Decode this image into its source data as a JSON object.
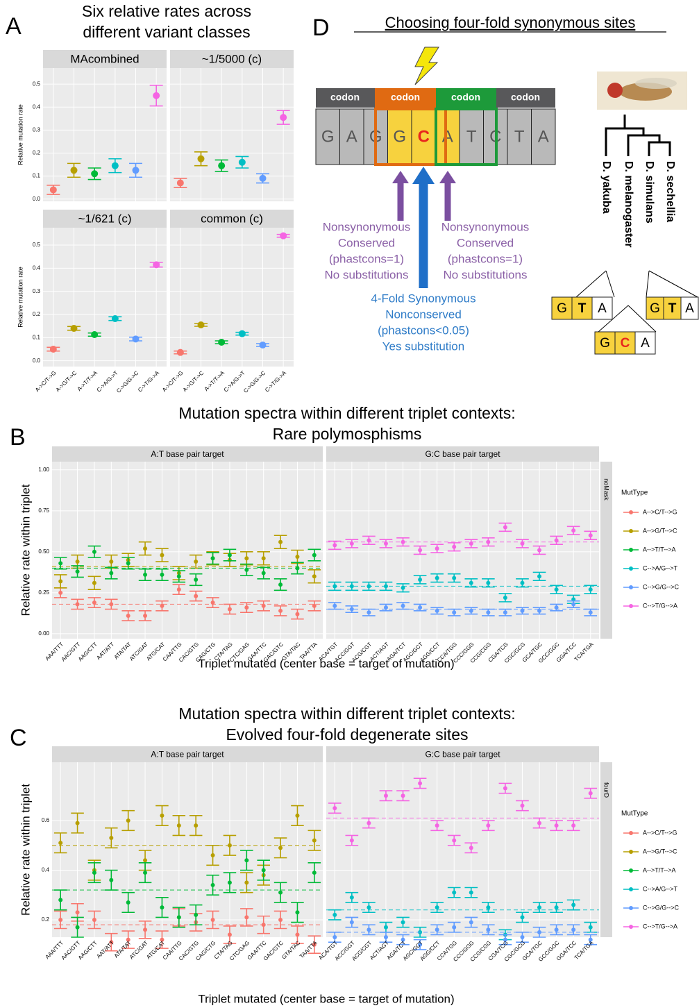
{
  "chart_data": [
    {
      "type": "errorbar",
      "panel": "A",
      "title": [
        "Six relative rates across",
        "different variant classes"
      ],
      "ylabel": "Relative mutation rate",
      "categories": [
        "A->C/T->G",
        "A->G/T->C",
        "A->T/T->A",
        "C->A/G->T",
        "C->G/G->C",
        "C->T/G->A"
      ],
      "colors": [
        "#F8766D",
        "#B79F00",
        "#00BA38",
        "#00BFC4",
        "#619CFF",
        "#F564E3"
      ],
      "rows": [
        {
          "ylim": [
            -0.01,
            0.57
          ],
          "yticks": [
            {
              "value": 0,
              "label": "0.0"
            },
            0.1,
            0.2,
            0.3,
            0.4,
            0.5
          ],
          "facets": [
            {
              "title": "MAcombined",
              "values": [
                0.04,
                0.125,
                0.11,
                0.145,
                0.125,
                0.45
              ],
              "errors": [
                0.02,
                0.03,
                0.025,
                0.03,
                0.03,
                0.045
              ]
            },
            {
              "title": "~1/5000 (c)",
              "values": [
                0.07,
                0.175,
                0.145,
                0.16,
                0.09,
                0.355
              ],
              "errors": [
                0.02,
                0.03,
                0.025,
                0.025,
                0.02,
                0.03
              ]
            }
          ]
        },
        {
          "ylim": [
            -0.025,
            0.575
          ],
          "yticks": [
            {
              "value": 0,
              "label": "0.0"
            },
            0.1,
            0.2,
            0.3,
            0.4,
            0.5
          ],
          "facets": [
            {
              "title": "~1/621 (c)",
              "values": [
                0.05,
                0.14,
                0.113,
                0.182,
                0.094,
                0.415
              ],
              "errors": [
                0.008,
                0.008,
                0.007,
                0.008,
                0.008,
                0.01
              ]
            },
            {
              "title": "common (c)",
              "values": [
                0.036,
                0.155,
                0.08,
                0.117,
                0.068,
                0.54
              ],
              "errors": [
                0.006,
                0.006,
                0.006,
                0.006,
                0.006,
                0.006
              ]
            }
          ]
        }
      ]
    },
    {
      "type": "errorbar_facets",
      "panel": "B",
      "title": [
        "Mutation spectra within different triplet contexts:",
        "Rare polymosphisms"
      ],
      "xlabel": "Triplet mutated (center base = target of mutation)",
      "ylabel": "Relative rate within triplet",
      "strip": "noMask",
      "legend_title": "MutType",
      "ylim": [
        -0.03,
        1.05
      ],
      "yticks": [
        {
          "value": 0,
          "label": "0.00"
        },
        0.25,
        {
          "value": 0.5,
          "label": "0.50"
        },
        0.75,
        {
          "value": 1,
          "label": "1.00"
        }
      ],
      "facets": [
        {
          "title": "A:T base pair target",
          "categories": [
            "AAA/TTT",
            "AAC/GTT",
            "AAG/CTT",
            "AAT/ATT",
            "ATA/TAT",
            "ATC/GAT",
            "ATG/CAT",
            "CAA/TTG",
            "CAC/GTG",
            "CAG/CTG",
            "CTA/TAG",
            "CTC/GAG",
            "GAA/TTC",
            "GAC/GTC",
            "GTA/TAC",
            "TAA/TTA"
          ],
          "series": [
            {
              "name": "A-->C/T-->G",
              "color": "#F8766D",
              "mean": 0.18,
              "values": [
                0.25,
                0.18,
                0.19,
                0.18,
                0.11,
                0.11,
                0.17,
                0.27,
                0.23,
                0.19,
                0.15,
                0.16,
                0.17,
                0.14,
                0.12,
                0.17
              ],
              "errors": [
                0.03,
                0.03,
                0.03,
                0.03,
                0.03,
                0.03,
                0.03,
                0.03,
                0.03,
                0.03,
                0.03,
                0.03,
                0.03,
                0.03,
                0.03,
                0.03
              ]
            },
            {
              "name": "A-->G/T-->C",
              "color": "#B79F00",
              "mean": 0.41,
              "values": [
                0.32,
                0.44,
                0.31,
                0.44,
                0.45,
                0.52,
                0.48,
                0.37,
                0.44,
                0.46,
                0.45,
                0.46,
                0.46,
                0.56,
                0.47,
                0.35
              ],
              "errors": [
                0.04,
                0.04,
                0.04,
                0.04,
                0.04,
                0.04,
                0.04,
                0.04,
                0.04,
                0.04,
                0.04,
                0.04,
                0.04,
                0.04,
                0.04,
                0.04
              ]
            },
            {
              "name": "A-->T/T-->A",
              "color": "#00BA38",
              "mean": 0.4,
              "values": [
                0.43,
                0.38,
                0.5,
                0.37,
                0.43,
                0.36,
                0.36,
                0.35,
                0.33,
                0.46,
                0.48,
                0.39,
                0.37,
                0.3,
                0.4,
                0.48
              ],
              "errors": [
                0.035,
                0.035,
                0.035,
                0.035,
                0.035,
                0.035,
                0.035,
                0.035,
                0.035,
                0.035,
                0.035,
                0.035,
                0.035,
                0.035,
                0.035,
                0.035
              ]
            }
          ]
        },
        {
          "title": "G:C base pair target",
          "categories": [
            "ACA/TGT",
            "ACC/GGT",
            "ACG/CGT",
            "ACT/AGT",
            "AGA/TCT",
            "AGC/GCT",
            "AGG/CCT",
            "CCA/TGG",
            "CCC/GGG",
            "CCG/CGG",
            "CGA/TCG",
            "CGC/GCG",
            "GCA/TGC",
            "GCC/GGC",
            "GGA/TCC",
            "TCA/TGA"
          ],
          "series": [
            {
              "name": "C-->A/G-->T",
              "color": "#00BFC4",
              "mean": 0.29,
              "values": [
                0.29,
                0.29,
                0.29,
                0.29,
                0.28,
                0.33,
                0.34,
                0.34,
                0.31,
                0.31,
                0.22,
                0.31,
                0.35,
                0.27,
                0.21,
                0.27
              ],
              "errors": [
                0.025,
                0.025,
                0.025,
                0.025,
                0.025,
                0.025,
                0.025,
                0.025,
                0.025,
                0.025,
                0.025,
                0.025,
                0.025,
                0.025,
                0.025,
                0.025
              ]
            },
            {
              "name": "C-->G/G-->C",
              "color": "#619CFF",
              "mean": 0.15,
              "values": [
                0.17,
                0.15,
                0.13,
                0.16,
                0.17,
                0.16,
                0.14,
                0.13,
                0.14,
                0.13,
                0.13,
                0.14,
                0.14,
                0.16,
                0.18,
                0.13
              ],
              "errors": [
                0.02,
                0.02,
                0.02,
                0.02,
                0.02,
                0.02,
                0.02,
                0.02,
                0.02,
                0.02,
                0.02,
                0.02,
                0.02,
                0.02,
                0.02,
                0.02
              ]
            },
            {
              "name": "C-->T/G-->A",
              "color": "#F564E3",
              "mean": 0.56,
              "values": [
                0.54,
                0.55,
                0.57,
                0.55,
                0.56,
                0.51,
                0.52,
                0.53,
                0.55,
                0.56,
                0.65,
                0.55,
                0.51,
                0.57,
                0.63,
                0.6
              ],
              "errors": [
                0.025,
                0.025,
                0.025,
                0.025,
                0.025,
                0.025,
                0.025,
                0.025,
                0.025,
                0.025,
                0.025,
                0.025,
                0.025,
                0.025,
                0.025,
                0.025
              ]
            }
          ]
        }
      ]
    },
    {
      "type": "errorbar_facets",
      "panel": "C",
      "title": [
        "Mutation spectra within different triplet contexts:",
        "Evolved four-fold degenerate sites"
      ],
      "xlabel": "Triplet mutated (center base = target of mutation)",
      "ylabel": "Relative rate within triplet",
      "strip": "fourD",
      "legend_title": "MutType",
      "ylim": [
        0.13,
        0.835
      ],
      "yticks": [
        0.2,
        0.4,
        0.6
      ],
      "facets": [
        {
          "title": "A:T base pair target",
          "categories": [
            "AAA/TTT",
            "AAC/GTT",
            "AAG/CTT",
            "AAT/ATT",
            "ATA/TAT",
            "ATC/GAT",
            "ATG/CAT",
            "CAA/TTG",
            "CAC/GTG",
            "CAG/CTG",
            "CTA/TAG",
            "CTC/GAG",
            "GAA/TTC",
            "GAC/GTC",
            "GTA/TAC",
            "TAA/TTA"
          ],
          "series": [
            {
              "name": "A-->C/T-->G",
              "color": "#F8766D",
              "mean": 0.18,
              "values": [
                0.2,
                0.23,
                0.2,
                0.11,
                0.12,
                0.16,
                0.12,
                0.21,
                0.19,
                0.2,
                0.14,
                0.21,
                0.18,
                0.2,
                0.14,
                0.1
              ],
              "errors": [
                0.035,
                0.035,
                0.035,
                0.035,
                0.035,
                0.035,
                0.035,
                0.035,
                0.035,
                0.035,
                0.035,
                0.035,
                0.035,
                0.035,
                0.035,
                0.035
              ]
            },
            {
              "name": "A-->G/T-->C",
              "color": "#B79F00",
              "mean": 0.5,
              "values": [
                0.51,
                0.59,
                0.4,
                0.53,
                0.6,
                0.44,
                0.62,
                0.58,
                0.58,
                0.46,
                0.5,
                0.35,
                0.38,
                0.49,
                0.62,
                0.52
              ],
              "errors": [
                0.04,
                0.04,
                0.04,
                0.04,
                0.04,
                0.04,
                0.04,
                0.04,
                0.04,
                0.04,
                0.04,
                0.04,
                0.04,
                0.04,
                0.04,
                0.04
              ]
            },
            {
              "name": "A-->T/T-->A",
              "color": "#00BA38",
              "mean": 0.32,
              "values": [
                0.28,
                0.17,
                0.39,
                0.36,
                0.27,
                0.39,
                0.25,
                0.21,
                0.22,
                0.34,
                0.35,
                0.44,
                0.4,
                0.31,
                0.23,
                0.39
              ],
              "errors": [
                0.04,
                0.04,
                0.04,
                0.04,
                0.04,
                0.04,
                0.04,
                0.04,
                0.04,
                0.04,
                0.04,
                0.04,
                0.04,
                0.04,
                0.04,
                0.04
              ]
            }
          ]
        },
        {
          "title": "G:C base pair target",
          "categories": [
            "ACA/TGT",
            "ACC/GGT",
            "ACG/CGT",
            "ACT/AGT",
            "AGA/TCT",
            "AGC/GCT",
            "AGG/CCT",
            "CCA/TGG",
            "CCC/GGG",
            "CCG/CGG",
            "CGA/TCG",
            "CGC/GCG",
            "GCA/TGC",
            "GCC/GGC",
            "GGA/TCC",
            "TCA/TGA"
          ],
          "series": [
            {
              "name": "C-->A/G-->T",
              "color": "#00BFC4",
              "mean": 0.24,
              "values": [
                0.22,
                0.29,
                0.25,
                0.17,
                0.19,
                0.15,
                0.25,
                0.31,
                0.31,
                0.25,
                0.14,
                0.21,
                0.25,
                0.25,
                0.26,
                0.17
              ],
              "errors": [
                0.02,
                0.02,
                0.02,
                0.02,
                0.02,
                0.02,
                0.02,
                0.02,
                0.02,
                0.02,
                0.02,
                0.02,
                0.02,
                0.02,
                0.02,
                0.02
              ]
            },
            {
              "name": "C-->G/G-->C",
              "color": "#619CFF",
              "mean": 0.15,
              "values": [
                0.13,
                0.19,
                0.16,
                0.13,
                0.12,
                0.1,
                0.16,
                0.17,
                0.19,
                0.16,
                0.12,
                0.13,
                0.15,
                0.16,
                0.16,
                0.12
              ],
              "errors": [
                0.02,
                0.02,
                0.02,
                0.02,
                0.02,
                0.02,
                0.02,
                0.02,
                0.02,
                0.02,
                0.02,
                0.02,
                0.02,
                0.02,
                0.02,
                0.02
              ]
            },
            {
              "name": "C-->T/G-->A",
              "color": "#F564E3",
              "mean": 0.61,
              "values": [
                0.65,
                0.52,
                0.59,
                0.7,
                0.7,
                0.75,
                0.58,
                0.52,
                0.49,
                0.58,
                0.73,
                0.66,
                0.59,
                0.58,
                0.58,
                0.71
              ],
              "errors": [
                0.02,
                0.02,
                0.02,
                0.02,
                0.02,
                0.02,
                0.02,
                0.02,
                0.02,
                0.02,
                0.02,
                0.02,
                0.02,
                0.02,
                0.02,
                0.02
              ]
            }
          ]
        }
      ]
    }
  ],
  "diagram": {
    "panel": "D",
    "title": "Choosing four-fold synonymous sites",
    "codons": [
      "codon",
      "codon",
      "codon",
      "codon"
    ],
    "bases": [
      "G",
      "A",
      "G",
      "G",
      "C",
      "A",
      "T",
      "C",
      "T",
      "A"
    ],
    "left_note": [
      "Nonsynonymous",
      "Conserved",
      "(phastcons=1)",
      "No substitutions"
    ],
    "right_note": [
      "Nonsynonymous",
      "Conserved",
      "(phastcons=1)",
      "No substitutions"
    ],
    "center_note": [
      "4-Fold Synonymous",
      "Nonconserved",
      "(phastcons<0.05)",
      "Yes substitution"
    ],
    "species": [
      "D. yakuba",
      "D. melanogaster",
      "D. simulans",
      "D. sechellia"
    ],
    "triplets": [
      [
        "G",
        "T",
        "A"
      ],
      [
        "G",
        "C",
        "A"
      ],
      [
        "G",
        "T",
        "A"
      ]
    ]
  }
}
